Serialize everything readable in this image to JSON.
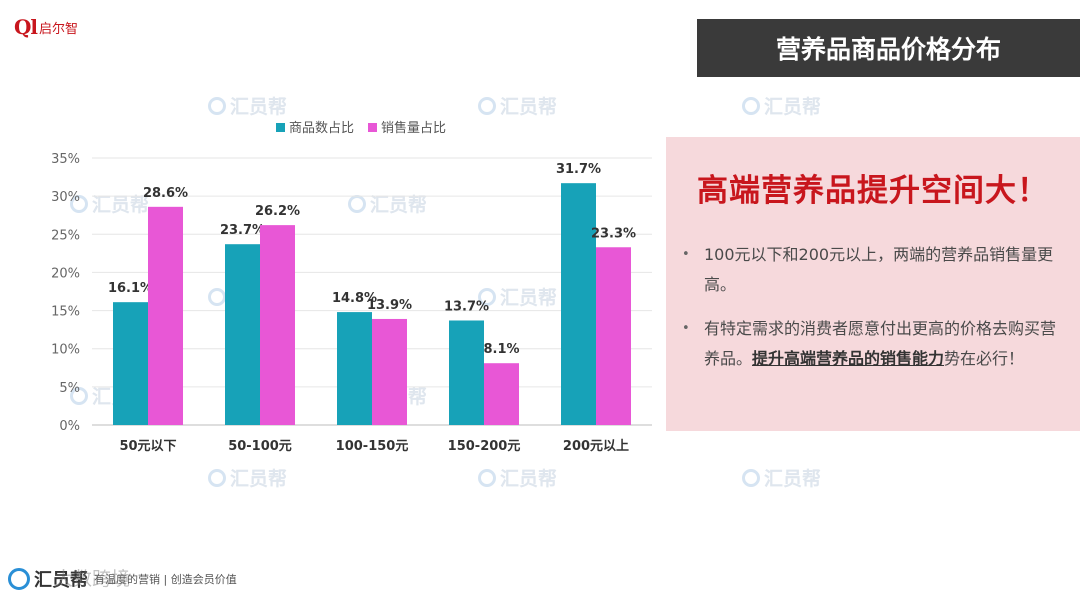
{
  "logo": {
    "mark": "Ql",
    "name": "启尔智"
  },
  "header": {
    "title": "营养品商品价格分布"
  },
  "watermark_text": "汇员帮",
  "chart_data": {
    "type": "bar",
    "categories": [
      "50元以下",
      "50-100元",
      "100-150元",
      "150-200元",
      "200元以上"
    ],
    "series": [
      {
        "name": "商品数占比",
        "values": [
          16.1,
          23.7,
          14.8,
          13.7,
          31.7
        ],
        "color": "#17a2b8"
      },
      {
        "name": "销售量占比",
        "values": [
          28.6,
          26.2,
          13.9,
          8.1,
          23.3
        ],
        "color": "#e857d6"
      }
    ],
    "value_suffix": "%",
    "ylim": [
      0,
      35
    ],
    "yticks": [
      0,
      5,
      10,
      15,
      20,
      25,
      30,
      35
    ],
    "ytick_labels": [
      "0%",
      "5%",
      "10%",
      "15%",
      "20%",
      "25%",
      "30%",
      "35%"
    ],
    "grid": true,
    "legend": "top-center"
  },
  "panel": {
    "headline": "高端营养品提升空间大！",
    "bullets": [
      {
        "text": "100元以下和200元以上，两端的营养品销售量更高。"
      },
      {
        "prefix": "有特定需求的消费者愿意付出更高的价格去购买营养品。",
        "strong": "提升高端营养品的销售能力",
        "suffix": "势在必行！"
      }
    ],
    "bullet_symbol": "•"
  },
  "footer": {
    "brand": "汇员帮",
    "tagline": "有温度的营销 | 创造会员价值",
    "overlay": "大数跨境"
  }
}
